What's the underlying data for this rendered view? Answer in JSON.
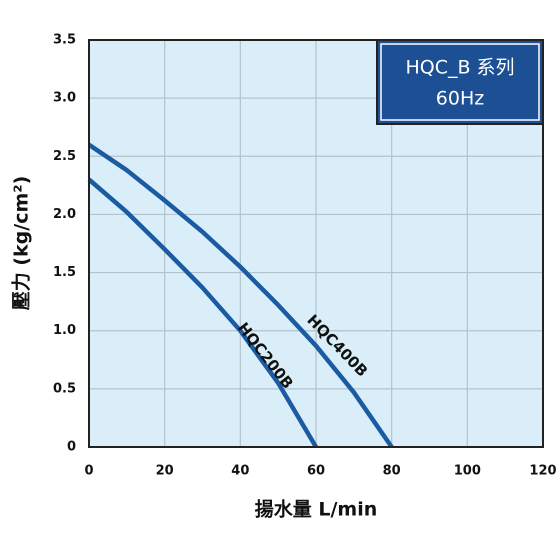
{
  "chart_data": {
    "type": "line",
    "title": "HQC_B 系列",
    "subtitle": "60Hz",
    "x_label": "揚水量 L/min",
    "y_label": "壓力 (kg/cm²)",
    "series": [
      {
        "name": "HQC200B",
        "color": "#1b5ba3",
        "x": [
          0,
          10,
          20,
          30,
          40,
          50,
          60
        ],
        "values": [
          2.3,
          2.02,
          1.7,
          1.37,
          1.0,
          0.55,
          0
        ]
      },
      {
        "name": "HQC400B",
        "color": "#1b5ba3",
        "x": [
          0,
          10,
          20,
          30,
          40,
          50,
          60,
          70,
          80
        ],
        "values": [
          2.6,
          2.38,
          2.12,
          1.85,
          1.55,
          1.22,
          0.87,
          0.47,
          0
        ]
      }
    ],
    "xlim": [
      0,
      120
    ],
    "xticks": [
      0,
      20,
      40,
      60,
      80,
      100,
      120
    ],
    "ylim": [
      0,
      3.5
    ],
    "yticks": [
      0,
      0.5,
      {
        "value": 1,
        "label": "1.0"
      },
      1.5,
      {
        "value": 2,
        "label": "2.0"
      },
      2.5,
      {
        "value": 3,
        "label": "3.0"
      },
      3.5
    ],
    "grid": true
  }
}
